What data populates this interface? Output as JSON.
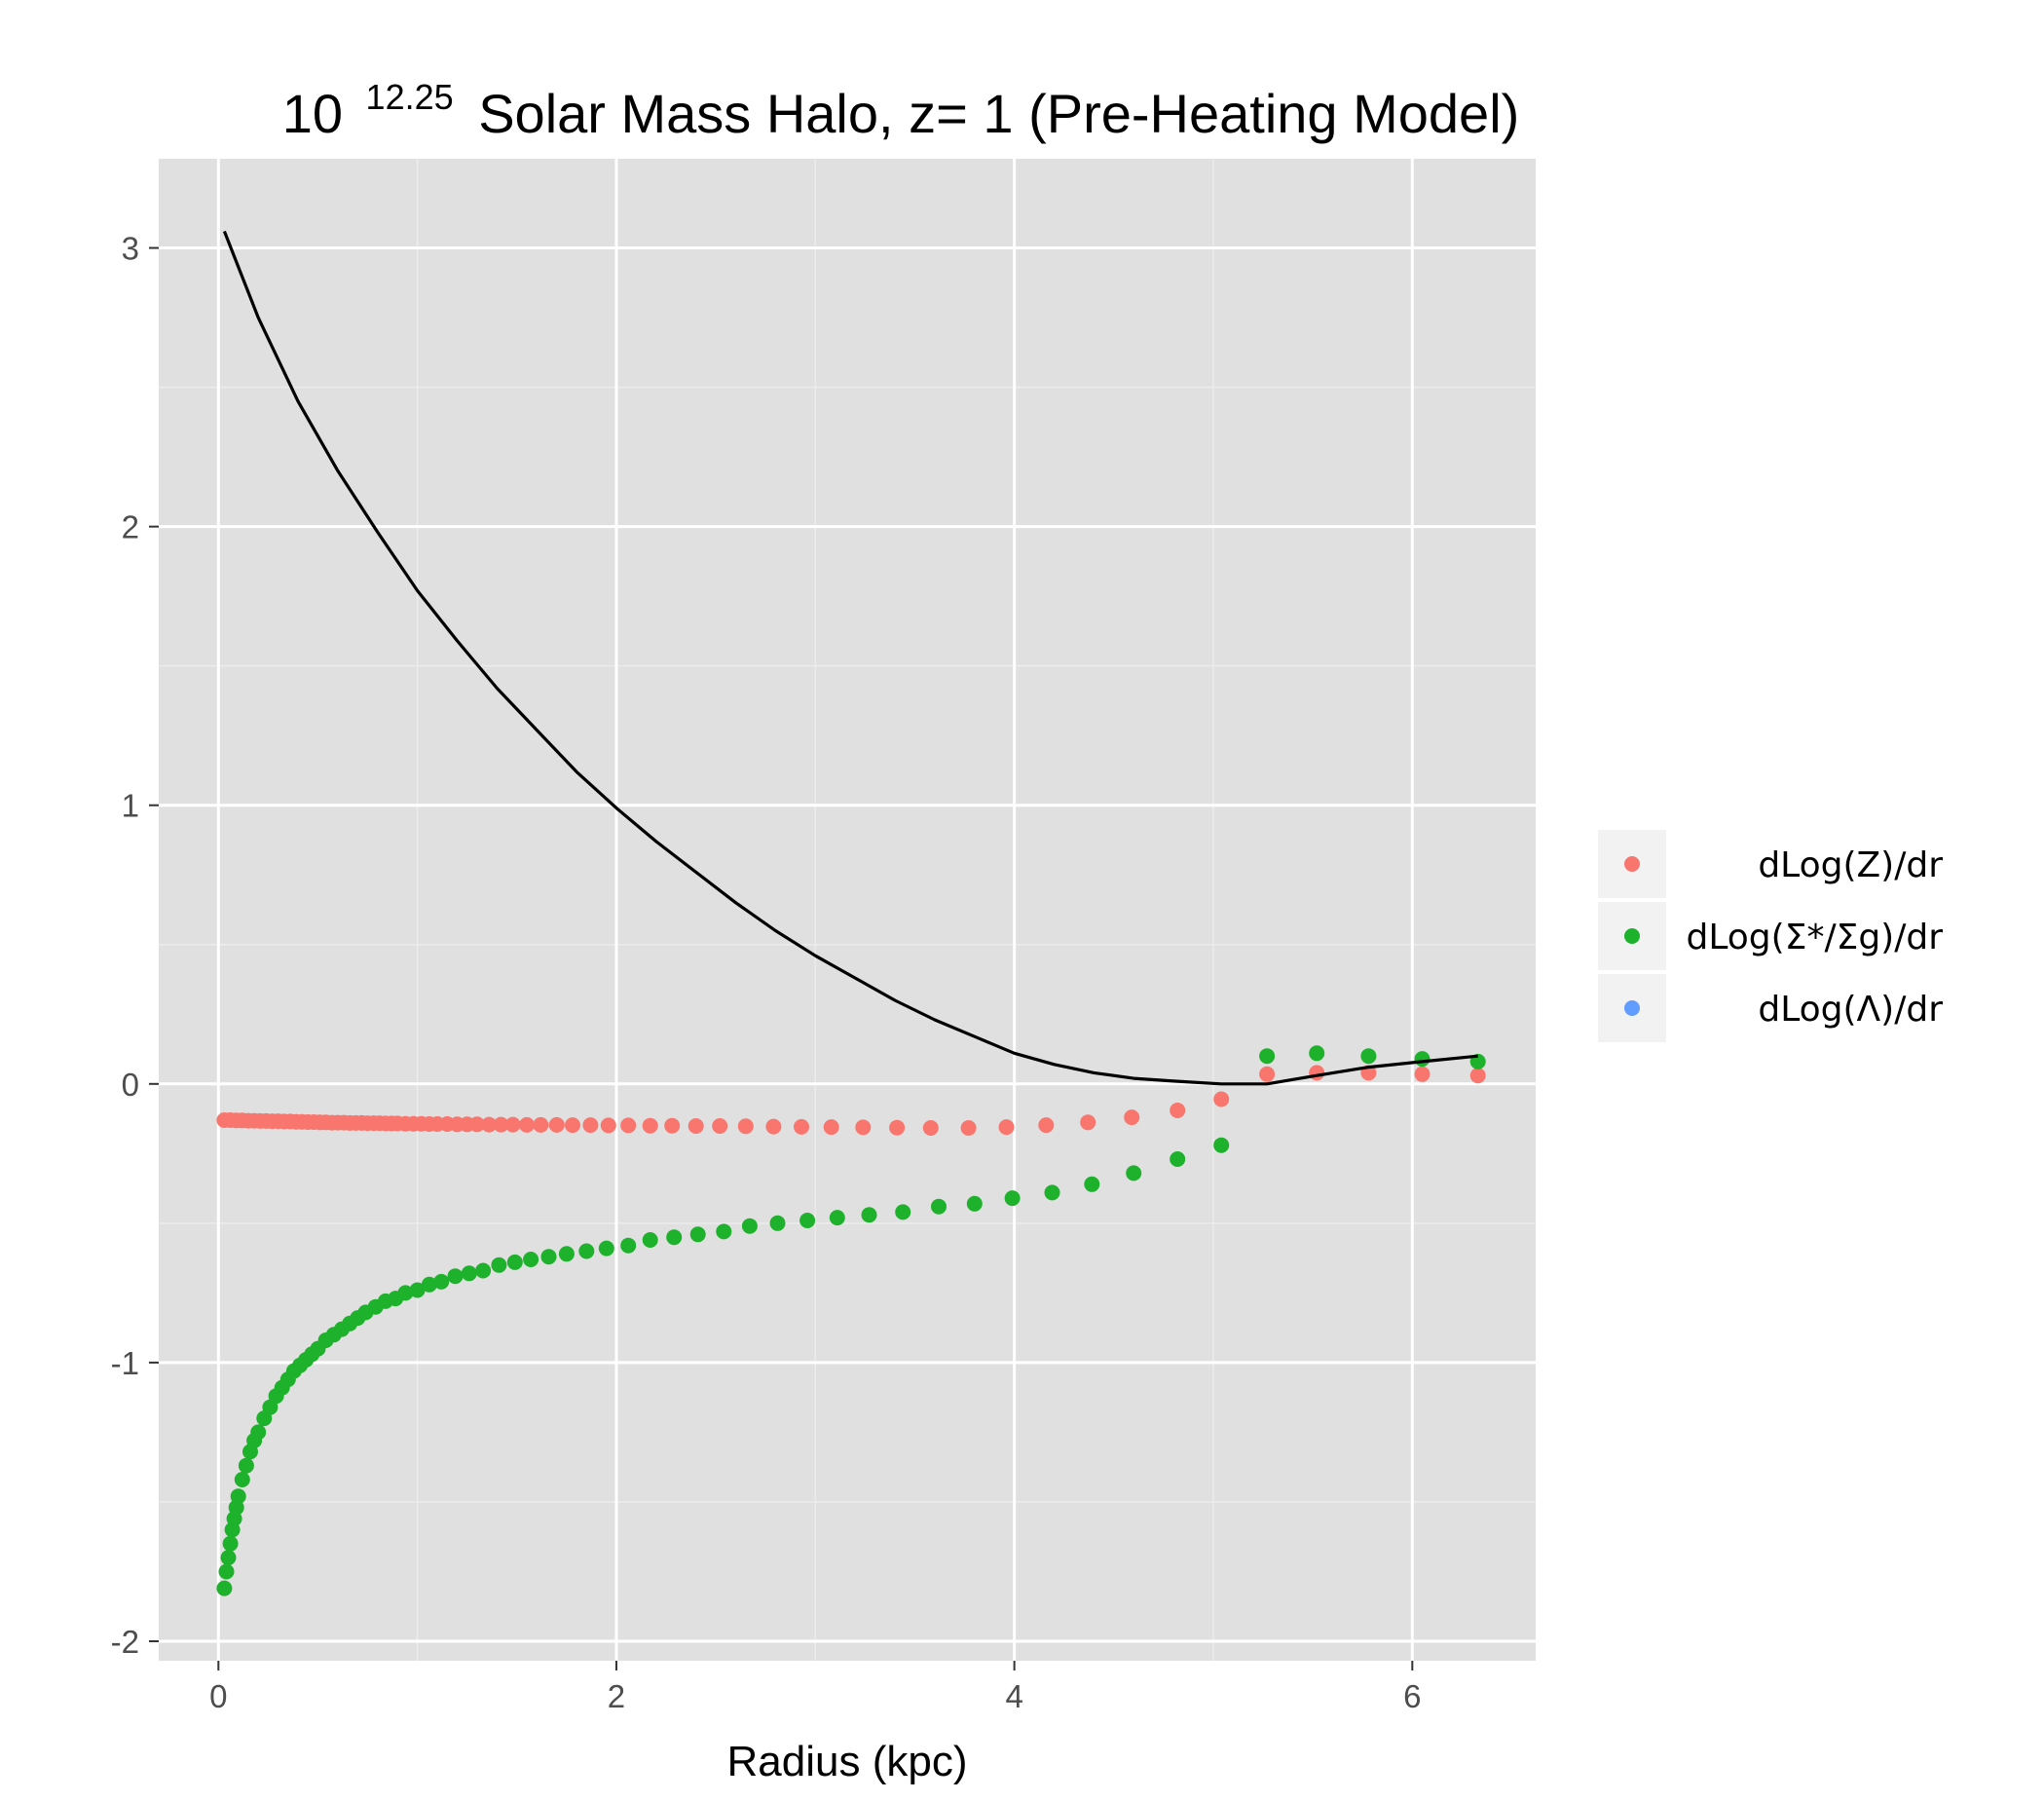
{
  "chart_data": {
    "type": "scatter",
    "title": {
      "base": "10",
      "exponent": "12.25",
      "rest": "Solar Mass Halo, z= 1 (Pre-Heating Model)"
    },
    "xlabel": "Radius (kpc)",
    "ylabel": "",
    "xlim": [
      -0.3,
      6.62
    ],
    "ylim": [
      -2.07,
      3.32
    ],
    "x_ticks": [
      {
        "value": 0,
        "label": "0"
      },
      {
        "value": 2,
        "label": "2"
      },
      {
        "value": 4,
        "label": "4"
      },
      {
        "value": 6,
        "label": "6"
      }
    ],
    "y_ticks": [
      {
        "value": -2,
        "label": "-2"
      },
      {
        "value": -1,
        "label": "-1"
      },
      {
        "value": 0,
        "label": "0"
      },
      {
        "value": 1,
        "label": "1"
      },
      {
        "value": 2,
        "label": "2"
      },
      {
        "value": 3,
        "label": "3"
      }
    ],
    "grid": true,
    "legend_position": "right",
    "colors": {
      "panel": "#e0e0e0",
      "grid_major": "#ffffff",
      "grid_minor": "#ececec",
      "line": "#000000",
      "red": "#f8766d",
      "green": "#1eb12c",
      "blue": "#619cff"
    },
    "legend": [
      {
        "label": "dLog(Z)/dr",
        "color": "#f8766d"
      },
      {
        "label": "dLog(Σ*/Σg)/dr",
        "color": "#1eb12c"
      },
      {
        "label": "dLog(Λ)/dr",
        "color": "#619cff"
      }
    ],
    "series": [
      {
        "name": "dLog(Z)/dr",
        "kind": "points",
        "color": "#f8766d",
        "x": [
          0.03,
          0.06,
          0.09,
          0.12,
          0.15,
          0.18,
          0.21,
          0.24,
          0.27,
          0.3,
          0.33,
          0.36,
          0.39,
          0.42,
          0.45,
          0.48,
          0.51,
          0.54,
          0.57,
          0.6,
          0.63,
          0.66,
          0.69,
          0.72,
          0.75,
          0.78,
          0.81,
          0.84,
          0.87,
          0.9,
          0.94,
          0.98,
          1.02,
          1.06,
          1.1,
          1.15,
          1.2,
          1.25,
          1.3,
          1.36,
          1.42,
          1.48,
          1.55,
          1.62,
          1.7,
          1.78,
          1.87,
          1.96,
          2.06,
          2.17,
          2.28,
          2.4,
          2.52,
          2.65,
          2.79,
          2.93,
          3.08,
          3.24,
          3.41,
          3.58,
          3.77,
          3.96,
          4.16,
          4.37,
          4.59,
          4.82,
          5.04,
          5.27,
          5.52,
          5.78,
          6.05,
          6.33
        ],
        "y": [
          -0.13,
          -0.13,
          -0.131,
          -0.131,
          -0.132,
          -0.132,
          -0.133,
          -0.133,
          -0.134,
          -0.134,
          -0.135,
          -0.135,
          -0.136,
          -0.136,
          -0.137,
          -0.137,
          -0.138,
          -0.138,
          -0.139,
          -0.139,
          -0.139,
          -0.14,
          -0.14,
          -0.14,
          -0.141,
          -0.141,
          -0.141,
          -0.142,
          -0.142,
          -0.142,
          -0.143,
          -0.143,
          -0.143,
          -0.144,
          -0.144,
          -0.144,
          -0.145,
          -0.145,
          -0.145,
          -0.146,
          -0.146,
          -0.146,
          -0.147,
          -0.147,
          -0.147,
          -0.148,
          -0.148,
          -0.149,
          -0.149,
          -0.15,
          -0.15,
          -0.151,
          -0.151,
          -0.152,
          -0.153,
          -0.154,
          -0.155,
          -0.156,
          -0.157,
          -0.158,
          -0.158,
          -0.155,
          -0.148,
          -0.138,
          -0.12,
          -0.095,
          -0.055,
          0.035,
          0.04,
          0.04,
          0.035,
          0.03
        ]
      },
      {
        "name": "dLog(Σ*/Σg)/dr",
        "kind": "points",
        "color": "#1eb12c",
        "x": [
          0.03,
          0.04,
          0.05,
          0.06,
          0.07,
          0.08,
          0.09,
          0.1,
          0.12,
          0.14,
          0.16,
          0.18,
          0.2,
          0.23,
          0.26,
          0.29,
          0.32,
          0.35,
          0.38,
          0.41,
          0.44,
          0.47,
          0.5,
          0.54,
          0.58,
          0.62,
          0.66,
          0.7,
          0.74,
          0.79,
          0.84,
          0.89,
          0.94,
          1.0,
          1.06,
          1.12,
          1.19,
          1.26,
          1.33,
          1.41,
          1.49,
          1.57,
          1.66,
          1.75,
          1.85,
          1.95,
          2.06,
          2.17,
          2.29,
          2.41,
          2.54,
          2.67,
          2.81,
          2.96,
          3.11,
          3.27,
          3.44,
          3.62,
          3.8,
          3.99,
          4.19,
          4.39,
          4.6,
          4.82,
          5.04,
          5.27,
          5.52,
          5.78,
          6.05,
          6.33
        ],
        "y": [
          -1.81,
          -1.75,
          -1.7,
          -1.65,
          -1.6,
          -1.56,
          -1.52,
          -1.48,
          -1.42,
          -1.37,
          -1.32,
          -1.28,
          -1.25,
          -1.2,
          -1.16,
          -1.12,
          -1.09,
          -1.06,
          -1.03,
          -1.01,
          -0.99,
          -0.97,
          -0.95,
          -0.92,
          -0.9,
          -0.88,
          -0.86,
          -0.84,
          -0.82,
          -0.8,
          -0.78,
          -0.77,
          -0.75,
          -0.74,
          -0.72,
          -0.71,
          -0.69,
          -0.68,
          -0.67,
          -0.65,
          -0.64,
          -0.63,
          -0.62,
          -0.61,
          -0.6,
          -0.59,
          -0.58,
          -0.56,
          -0.55,
          -0.54,
          -0.53,
          -0.51,
          -0.5,
          -0.49,
          -0.48,
          -0.47,
          -0.46,
          -0.44,
          -0.43,
          -0.41,
          -0.39,
          -0.36,
          -0.32,
          -0.27,
          -0.22,
          0.1,
          0.11,
          0.1,
          0.09,
          0.08
        ]
      },
      {
        "name": "",
        "kind": "line",
        "color": "#000000",
        "x": [
          0.03,
          0.2,
          0.4,
          0.6,
          0.8,
          1.0,
          1.2,
          1.4,
          1.6,
          1.8,
          2.0,
          2.2,
          2.4,
          2.6,
          2.8,
          3.0,
          3.2,
          3.4,
          3.6,
          3.8,
          4.0,
          4.2,
          4.4,
          4.6,
          4.8,
          5.04,
          5.27,
          5.52,
          5.78,
          6.05,
          6.33
        ],
        "y": [
          3.06,
          2.75,
          2.45,
          2.2,
          1.98,
          1.77,
          1.59,
          1.42,
          1.27,
          1.12,
          0.99,
          0.87,
          0.76,
          0.65,
          0.55,
          0.46,
          0.38,
          0.3,
          0.23,
          0.17,
          0.11,
          0.07,
          0.04,
          0.02,
          0.01,
          0.0,
          0.0,
          0.03,
          0.06,
          0.08,
          0.1
        ]
      }
    ]
  }
}
